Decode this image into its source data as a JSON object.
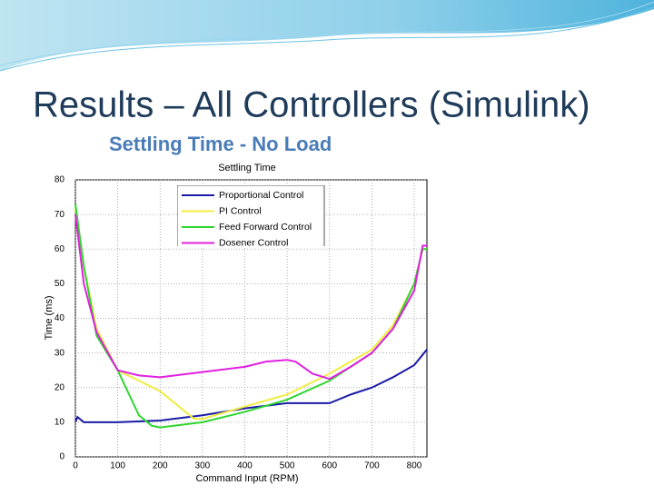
{
  "slide": {
    "title": "Results – All Controllers (Simulink)",
    "subtitle": "Settling Time - No Load"
  },
  "chart_data": {
    "type": "line",
    "title": "Settling Time",
    "x_label": "Command Input (RPM)",
    "y_label": "Time (ms)",
    "xlim": [
      0,
      830
    ],
    "ylim": [
      0,
      80
    ],
    "xticks": [
      0,
      100,
      200,
      300,
      400,
      500,
      600,
      700,
      800
    ],
    "yticks": [
      0,
      10,
      20,
      30,
      40,
      50,
      60,
      70,
      80
    ],
    "grid": true,
    "legend": "top",
    "series": [
      {
        "name": "Proportional Control",
        "color": "#1a1aa6",
        "x": [
          0,
          5,
          20,
          100,
          200,
          300,
          400,
          500,
          600,
          650,
          700,
          750,
          800,
          830
        ],
        "values": [
          10,
          11.5,
          10,
          10,
          10.5,
          12,
          14,
          15.5,
          15.5,
          18,
          20,
          23,
          26.5,
          31
        ]
      },
      {
        "name": "PI Control",
        "color": "#f0ec40",
        "x": [
          0,
          20,
          50,
          100,
          150,
          200,
          250,
          280,
          300,
          400,
          500,
          600,
          700,
          750,
          800,
          820,
          830
        ],
        "values": [
          72,
          55,
          37,
          25,
          22,
          19,
          14,
          11,
          11,
          14.5,
          18,
          24,
          31,
          38,
          50,
          60,
          60
        ]
      },
      {
        "name": "Feed Forward Control",
        "color": "#2ed62e",
        "x": [
          0,
          20,
          50,
          100,
          150,
          180,
          200,
          300,
          400,
          500,
          600,
          700,
          750,
          800,
          820,
          830
        ],
        "values": [
          73,
          55,
          35,
          25,
          12,
          9,
          8.5,
          10,
          13,
          16.5,
          22,
          30,
          37,
          50,
          60,
          60
        ]
      },
      {
        "name": "Dosener Control",
        "color": "#e020e0",
        "x": [
          0,
          20,
          50,
          100,
          150,
          200,
          300,
          400,
          450,
          500,
          520,
          560,
          600,
          650,
          700,
          750,
          800,
          820,
          830
        ],
        "values": [
          70,
          50,
          36,
          25,
          23.5,
          23,
          24.5,
          26,
          27.5,
          28,
          27.5,
          24,
          22.5,
          26,
          30,
          37,
          48,
          61,
          61
        ]
      }
    ]
  }
}
